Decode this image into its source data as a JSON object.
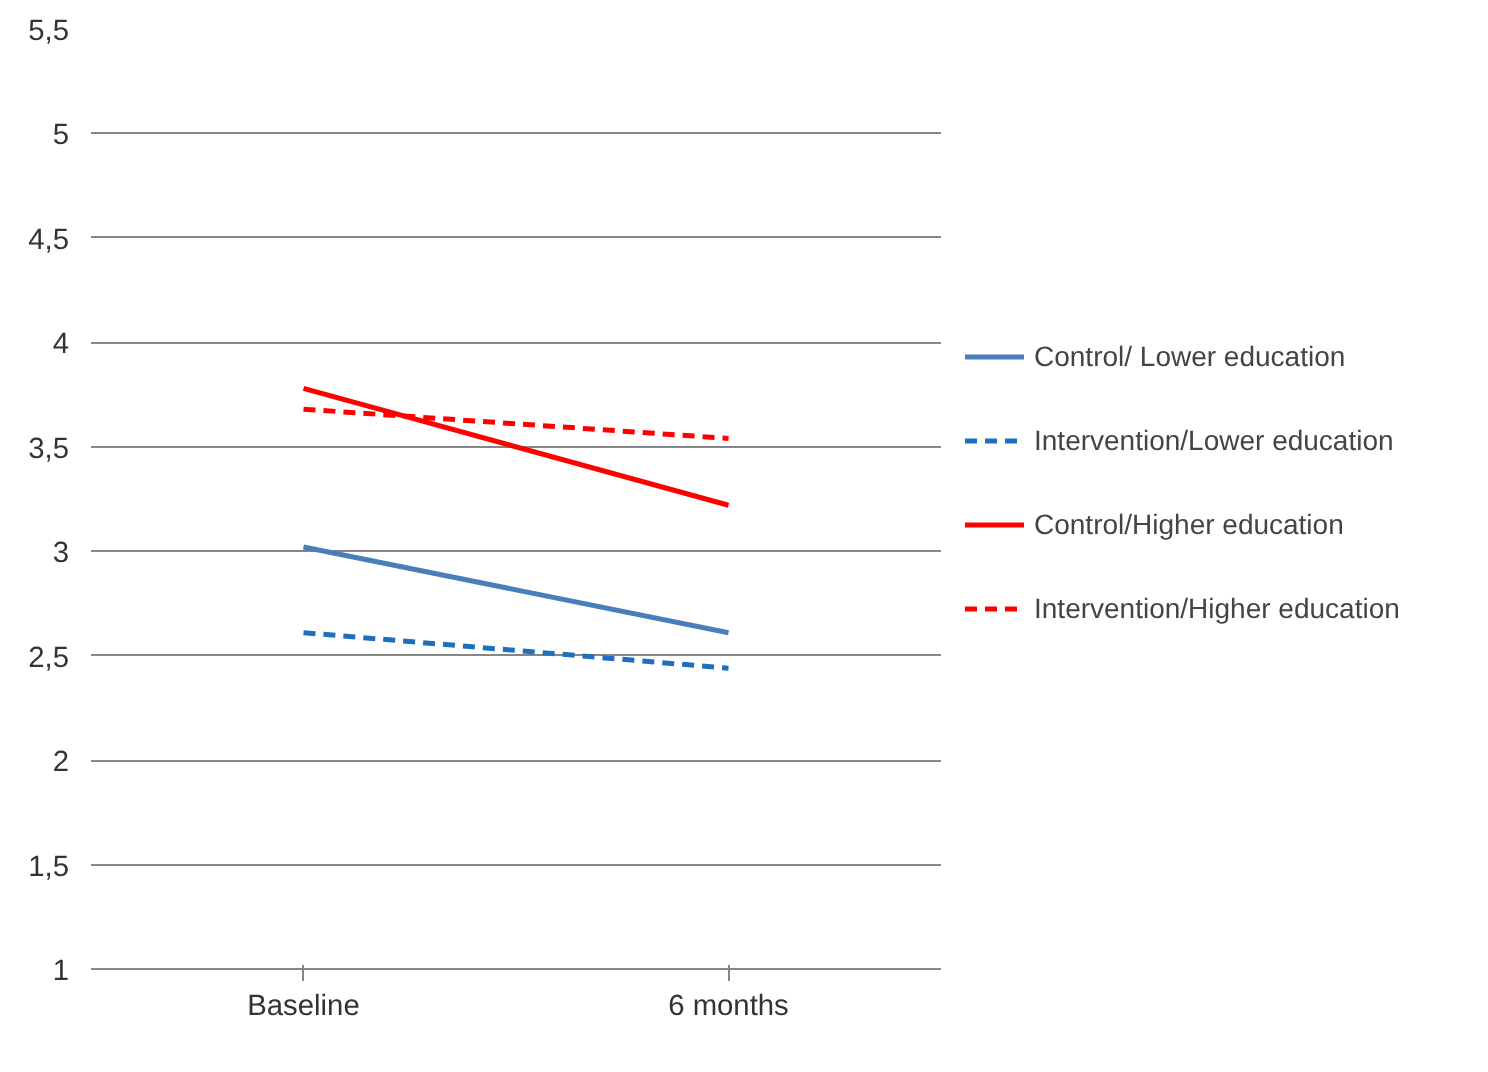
{
  "chart_data": {
    "type": "line",
    "categories": [
      "Baseline",
      "6 months"
    ],
    "series": [
      {
        "name": "Control/ Lower education",
        "color": "#4a7ebb",
        "values": [
          3.02,
          2.61
        ],
        "line_style": "solid"
      },
      {
        "name": "Intervention/Lower education",
        "color": "#1f6fc0",
        "values": [
          2.61,
          2.44
        ],
        "line_style": "dashed"
      },
      {
        "name": "Control/Higher education",
        "color": "#ff0000",
        "values": [
          3.78,
          3.22
        ],
        "line_style": "solid"
      },
      {
        "name": "Intervention/Higher education",
        "color": "#ff0000",
        "values": [
          3.68,
          3.54
        ],
        "line_style": "dashed"
      }
    ],
    "ylim": [
      1,
      5.5
    ],
    "yticks": [
      1,
      {
        "value": 1.5,
        "label": "1,5"
      },
      2,
      {
        "value": 2.5,
        "label": "2,5"
      },
      3,
      {
        "value": 3.5,
        "label": "3,5"
      },
      4,
      {
        "value": 4.5,
        "label": "4,5"
      },
      5,
      {
        "value": 5.5,
        "label": "5,5"
      }
    ],
    "grid": "y",
    "legend": "right",
    "marker": "none"
  }
}
